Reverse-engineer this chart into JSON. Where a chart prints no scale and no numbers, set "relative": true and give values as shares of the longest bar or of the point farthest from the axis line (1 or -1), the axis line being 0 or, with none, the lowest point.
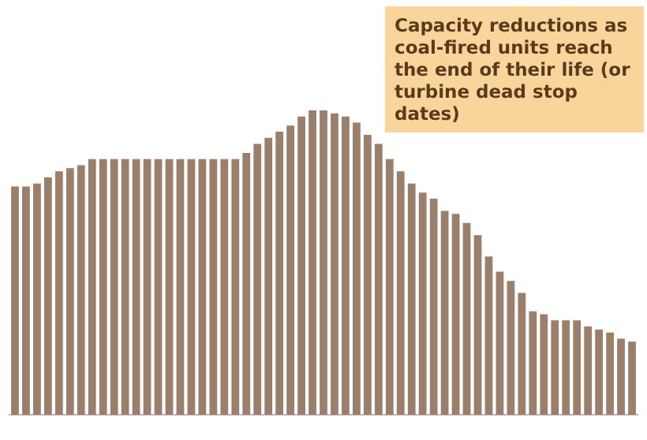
{
  "chart_data": {
    "type": "bar",
    "relative": true,
    "categories": [
      null,
      null,
      null,
      null,
      null,
      null,
      null,
      null,
      null,
      null,
      null,
      null,
      null,
      null,
      null,
      null,
      null,
      null,
      null,
      null,
      null,
      null,
      null,
      null,
      null,
      null,
      null,
      null,
      null,
      null,
      null,
      null,
      null,
      null,
      null,
      null,
      null,
      null,
      null,
      null,
      null,
      null,
      null,
      null,
      null,
      null,
      null,
      null,
      null,
      null,
      null,
      null,
      null,
      null,
      null,
      null,
      null
    ],
    "values": [
      0.75,
      0.75,
      0.76,
      0.78,
      0.8,
      0.81,
      0.82,
      0.84,
      0.84,
      0.84,
      0.84,
      0.84,
      0.84,
      0.84,
      0.84,
      0.84,
      0.84,
      0.84,
      0.84,
      0.84,
      0.84,
      0.86,
      0.89,
      0.91,
      0.93,
      0.95,
      0.98,
      1,
      1,
      0.99,
      0.98,
      0.96,
      0.92,
      0.89,
      0.84,
      0.8,
      0.76,
      0.73,
      0.71,
      0.67,
      0.66,
      0.63,
      0.59,
      0.52,
      0.47,
      0.44,
      0.4,
      0.34,
      0.33,
      0.31,
      0.31,
      0.31,
      0.29,
      0.28,
      0.27,
      0.25,
      0.24
    ],
    "color": "#9b7f6a",
    "annotations": [
      "Capacity reductions as coal-fired units reach the end of their life (or turbine dead stop dates)"
    ]
  }
}
